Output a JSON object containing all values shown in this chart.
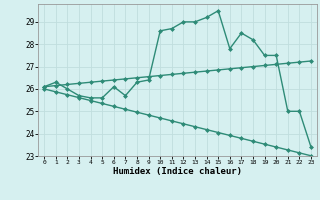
{
  "xlabel": "Humidex (Indice chaleur)",
  "ylabel": "",
  "x_values": [
    0,
    1,
    2,
    3,
    4,
    5,
    6,
    7,
    8,
    9,
    10,
    11,
    12,
    13,
    14,
    15,
    16,
    17,
    18,
    19,
    20,
    21,
    22,
    23
  ],
  "line1": [
    26.1,
    26.3,
    26.0,
    25.7,
    25.6,
    25.6,
    26.1,
    25.7,
    26.3,
    26.4,
    28.6,
    28.7,
    29.0,
    29.0,
    29.2,
    29.5,
    27.8,
    28.5,
    28.2,
    27.5,
    27.5,
    25.0,
    25.0,
    23.4
  ],
  "line2": [
    26.1,
    26.15,
    26.2,
    26.25,
    26.3,
    26.35,
    26.4,
    26.45,
    26.5,
    26.55,
    26.6,
    26.65,
    26.7,
    26.75,
    26.8,
    26.85,
    26.9,
    26.95,
    27.0,
    27.05,
    27.1,
    27.15,
    27.2,
    27.25
  ],
  "line3": [
    26.0,
    25.87,
    25.74,
    25.61,
    25.48,
    25.35,
    25.22,
    25.09,
    24.96,
    24.83,
    24.7,
    24.57,
    24.44,
    24.31,
    24.18,
    24.05,
    23.92,
    23.79,
    23.66,
    23.53,
    23.4,
    23.27,
    23.14,
    23.01
  ],
  "line_color": "#2e8b77",
  "bg_color": "#d6f0f0",
  "grid_color": "#c0dede",
  "xlim": [
    -0.5,
    23.5
  ],
  "ylim": [
    23,
    29.8
  ],
  "yticks": [
    23,
    24,
    25,
    26,
    27,
    28,
    29
  ],
  "xticks": [
    0,
    1,
    2,
    3,
    4,
    5,
    6,
    7,
    8,
    9,
    10,
    11,
    12,
    13,
    14,
    15,
    16,
    17,
    18,
    19,
    20,
    21,
    22,
    23
  ],
  "marker": "D",
  "markersize": 2,
  "linewidth": 1.0
}
